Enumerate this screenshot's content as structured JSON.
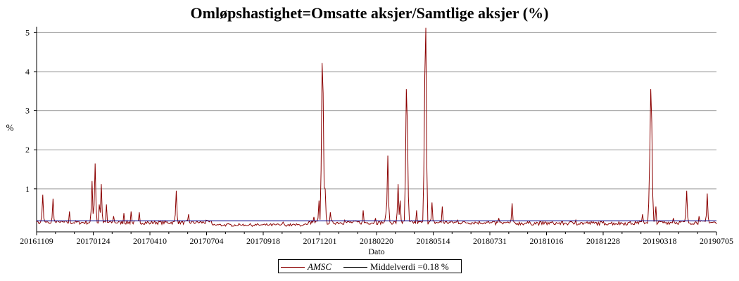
{
  "chart_data": {
    "type": "line",
    "title": "Omløpshastighet=Omsatte aksjer/Samtlige aksjer (%)",
    "xlabel": "Dato",
    "ylabel": "%",
    "x_tick_labels": [
      "20161109",
      "20170124",
      "20170410",
      "20170704",
      "20170918",
      "20171201",
      "20180220",
      "20180514",
      "20180731",
      "20181016",
      "20181228",
      "20190318",
      "20190705"
    ],
    "ylim": [
      -0.1,
      5.15
    ],
    "y_ticks": [
      1,
      2,
      3,
      4,
      5
    ],
    "grid": "horizontal",
    "legend_position": "bottom-center",
    "n_points": 663,
    "series": [
      {
        "name": "AMSC",
        "color": "#8b0000",
        "peaks": [
          {
            "x": 0,
            "y": 0.15
          },
          {
            "x": 6,
            "y": 0.85
          },
          {
            "x": 12,
            "y": 0.12
          },
          {
            "x": 16,
            "y": 0.75
          },
          {
            "x": 22,
            "y": 0.15
          },
          {
            "x": 32,
            "y": 0.42
          },
          {
            "x": 55,
            "y": 0.1
          },
          {
            "x": 54,
            "y": 1.2
          },
          {
            "x": 57,
            "y": 1.65
          },
          {
            "x": 61,
            "y": 0.6
          },
          {
            "x": 63,
            "y": 1.12
          },
          {
            "x": 68,
            "y": 0.6
          },
          {
            "x": 75,
            "y": 0.3
          },
          {
            "x": 85,
            "y": 0.38
          },
          {
            "x": 92,
            "y": 0.42
          },
          {
            "x": 100,
            "y": 0.4
          },
          {
            "x": 110,
            "y": 0.1
          },
          {
            "x": 136,
            "y": 0.95
          },
          {
            "x": 148,
            "y": 0.35
          },
          {
            "x": 165,
            "y": 0.2
          },
          {
            "x": 180,
            "y": 0.05
          },
          {
            "x": 200,
            "y": 0.07
          },
          {
            "x": 220,
            "y": 0.08
          },
          {
            "x": 240,
            "y": 0.15
          },
          {
            "x": 270,
            "y": 0.28
          },
          {
            "x": 275,
            "y": 0.7
          },
          {
            "x": 278,
            "y": 4.22
          },
          {
            "x": 279,
            "y": 3.45
          },
          {
            "x": 281,
            "y": 1.0
          },
          {
            "x": 286,
            "y": 0.4
          },
          {
            "x": 300,
            "y": 0.2
          },
          {
            "x": 318,
            "y": 0.45
          },
          {
            "x": 330,
            "y": 0.25
          },
          {
            "x": 340,
            "y": 0.35
          },
          {
            "x": 342,
            "y": 1.85
          },
          {
            "x": 352,
            "y": 1.12
          },
          {
            "x": 354,
            "y": 0.7
          },
          {
            "x": 360,
            "y": 3.55
          },
          {
            "x": 361,
            "y": 2.7
          },
          {
            "x": 370,
            "y": 0.45
          },
          {
            "x": 378,
            "y": 3.9
          },
          {
            "x": 379,
            "y": 5.12
          },
          {
            "x": 385,
            "y": 0.65
          },
          {
            "x": 395,
            "y": 0.55
          },
          {
            "x": 410,
            "y": 0.2
          },
          {
            "x": 450,
            "y": 0.25
          },
          {
            "x": 463,
            "y": 0.63
          },
          {
            "x": 500,
            "y": 0.15
          },
          {
            "x": 525,
            "y": 0.2
          },
          {
            "x": 560,
            "y": 0.15
          },
          {
            "x": 590,
            "y": 0.35
          },
          {
            "x": 597,
            "y": 1.8
          },
          {
            "x": 598,
            "y": 3.55
          },
          {
            "x": 599,
            "y": 2.7
          },
          {
            "x": 603,
            "y": 0.55
          },
          {
            "x": 620,
            "y": 0.25
          },
          {
            "x": 633,
            "y": 0.95
          },
          {
            "x": 645,
            "y": 0.3
          },
          {
            "x": 653,
            "y": 0.88
          },
          {
            "x": 662,
            "y": 0.1
          }
        ]
      },
      {
        "name": "Middelverdi =0.18 %",
        "color": "#00008b",
        "constant": 0.18
      }
    ]
  }
}
